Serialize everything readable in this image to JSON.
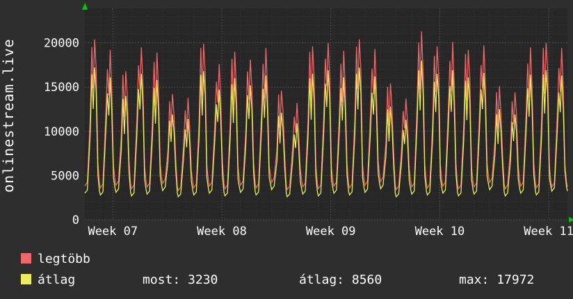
{
  "y_axis_title": "onlinestream.live",
  "legend": {
    "items": [
      {
        "label": "legtöbb",
        "color": "#ee6868"
      },
      {
        "label": "átlag",
        "color": "#ecec5e"
      }
    ]
  },
  "stats": [
    {
      "label": "most:",
      "value": "3230"
    },
    {
      "label": "átlag:",
      "value": "8560"
    },
    {
      "label": "max:",
      "value": "17972"
    }
  ],
  "chart_data": {
    "type": "line",
    "title": "",
    "ylabel": "onlinestream.live",
    "xlabel": "",
    "ylim": [
      0,
      23900
    ],
    "yticks": [
      0,
      5000,
      10000,
      15000,
      20000
    ],
    "ytick_labels": [
      "0",
      "5000",
      "10000",
      "15000",
      "20000"
    ],
    "xtick_labels": [
      "Week 07",
      "Week 08",
      "Week 09",
      "Week 10",
      "Week 11"
    ],
    "xtick_day_positions": [
      1.8,
      8.8,
      15.8,
      22.8,
      29.8
    ],
    "days_total": 31,
    "grid": true,
    "legend_position": "bottom-left",
    "colors": {
      "background": "#2e2e2e",
      "plot_background": "#272727",
      "grid_major": "#4f4f4f",
      "grid_minor": "#373737",
      "axis_arrow": "#00c800",
      "text": "#ffffff"
    },
    "series": [
      {
        "name": "legtöbb",
        "color": "#ee6868",
        "role": "daily-maximum",
        "daily_peaks": [
          20400,
          19200,
          16800,
          19500,
          18900,
          14200,
          13800,
          19900,
          17600,
          19000,
          18100,
          19400,
          14600,
          13200,
          19600,
          20000,
          19100,
          20400,
          19300,
          15400,
          13700,
          21300,
          19600,
          20100,
          19200,
          19700,
          15100,
          14400,
          19500,
          20000,
          19400
        ],
        "daily_mins": [
          3800,
          3600,
          3900,
          3500,
          3700,
          4100,
          3300,
          3600,
          3800,
          3500,
          3900,
          3600,
          4200,
          3400,
          3700,
          3500,
          3800,
          3600,
          3900,
          4300,
          3400,
          3700,
          3600,
          3800,
          3500,
          3700,
          4200,
          3500,
          3800,
          3600,
          3700
        ]
      },
      {
        "name": "átlag",
        "color": "#ecec5e",
        "role": "daily-average",
        "current": 3230,
        "average": 8560,
        "max": 17972,
        "daily_peaks": [
          17200,
          16100,
          14000,
          16500,
          15800,
          11900,
          11400,
          16800,
          14700,
          16000,
          15200,
          16300,
          12100,
          10900,
          16500,
          16900,
          16100,
          17200,
          16200,
          12800,
          11300,
          17972,
          16500,
          16900,
          16100,
          16600,
          12500,
          11900,
          16400,
          16900,
          16300
        ],
        "daily_mins": [
          3000,
          2800,
          3100,
          2700,
          2900,
          3300,
          2600,
          2800,
          3000,
          2700,
          3100,
          2800,
          3400,
          2600,
          2900,
          2700,
          3000,
          2800,
          3100,
          3500,
          2600,
          2900,
          2800,
          3000,
          2700,
          2900,
          3400,
          2700,
          3000,
          2800,
          3230
        ]
      }
    ]
  }
}
